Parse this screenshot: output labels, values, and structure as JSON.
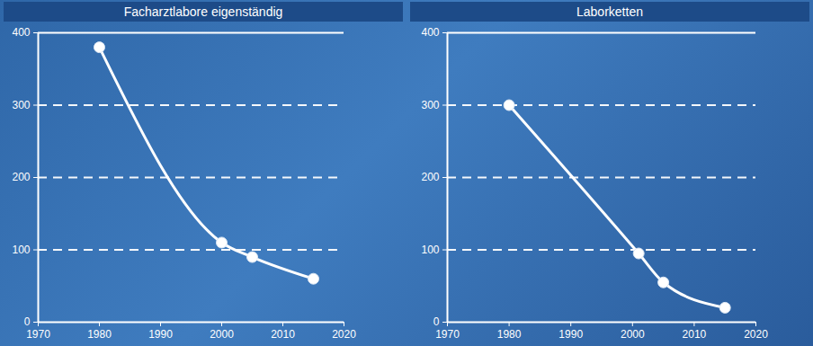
{
  "chart_data": [
    {
      "type": "line",
      "title": "Facharztlabore eigenständig",
      "x": [
        1980,
        2000,
        2005,
        2015
      ],
      "values": [
        380,
        110,
        90,
        60
      ],
      "color": "#ffffff",
      "marker": "circle",
      "xlim": [
        1970,
        2020
      ],
      "xticks": [
        1970,
        1980,
        1990,
        2000,
        2010,
        2020
      ],
      "ylim": [
        0,
        400
      ],
      "yticks": [
        0,
        100,
        200,
        300,
        400
      ],
      "grid": true
    },
    {
      "type": "line",
      "title": "Laborketten",
      "x": [
        1980,
        2001,
        2005,
        2015
      ],
      "values": [
        300,
        95,
        55,
        20
      ],
      "color": "#ffffff",
      "marker": "circle",
      "xlim": [
        1970,
        2020
      ],
      "xticks": [
        1970,
        1980,
        1990,
        2000,
        2010,
        2020
      ],
      "ylim": [
        0,
        400
      ],
      "yticks": [
        0,
        100,
        200,
        300,
        400
      ],
      "grid": true
    }
  ]
}
